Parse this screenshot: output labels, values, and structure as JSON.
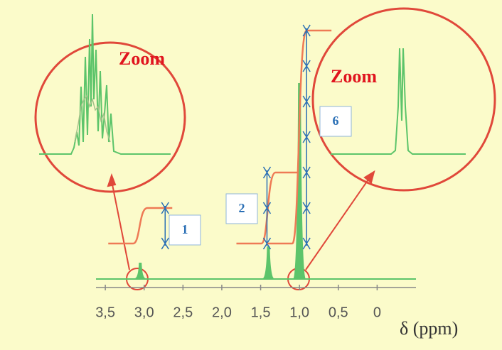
{
  "chart_data": {
    "type": "spectrum",
    "x": [
      3.05,
      1.4,
      1.0
    ],
    "values": [
      1,
      2,
      6
    ],
    "color": "#5cc46a",
    "integral_color": "#ee7a55",
    "xlim": [
      3.62,
      -0.5
    ],
    "xticks": [
      {
        "value": 3.5,
        "label": "3,5"
      },
      {
        "value": 3.0,
        "label": "3,0"
      },
      {
        "value": 2.5,
        "label": "2,5"
      },
      {
        "value": 2.0,
        "label": "2,0"
      },
      {
        "value": 1.5,
        "label": "1,5"
      },
      {
        "value": 1.0,
        "label": "1,0"
      },
      {
        "value": 0.5,
        "label": "0,5"
      },
      0
    ],
    "x_label": "δ (ppm)",
    "annotations": [
      "Zoom",
      "Zoom"
    ]
  }
}
